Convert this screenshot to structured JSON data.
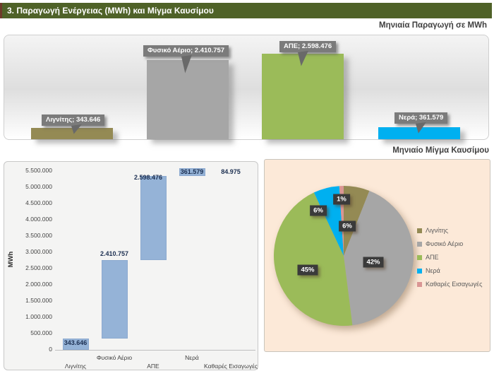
{
  "header": {
    "title": "3. Παραγωγή Ενέργειας (MWh) και Μίγμα Καυσίμου"
  },
  "theme": {
    "header_bg": "#4F6228",
    "header_accent": "#6E3B2A",
    "pie_panel_bg": "#FCE9D8",
    "waterfall_bar_color": "#95B3D7",
    "callout_bg": "#7B7B7B"
  },
  "chart_data": [
    {
      "type": "bar",
      "title": "Μηνιαία Παραγωγή σε MWh",
      "categories": [
        "Λιγνίτης",
        "Φυσικό Αέριο",
        "ΑΠΕ",
        "Νερά"
      ],
      "values": [
        343646,
        2410757,
        2598476,
        361579
      ],
      "callouts": [
        "Λιγνίτης; 343.646",
        "Φυσικό Αέριο; 2.410.757",
        "ΑΠΕ; 2.598.476",
        "Νερά; 361.579"
      ],
      "colors": [
        "#948A54",
        "#A6A6A6",
        "#9BBB59",
        "#00B0F0"
      ],
      "xlabel": "",
      "ylabel": "",
      "grid": false,
      "legend": false
    },
    {
      "type": "bar",
      "subtype": "waterfall",
      "title": "",
      "xlabel": "",
      "ylabel": "MWh",
      "categories": [
        "Λιγνίτης",
        "Φυσικό Αέριο",
        "ΑΠΕ",
        "Νερά",
        "Καθαρές Εισαγωγές"
      ],
      "values": [
        343646,
        2410757,
        2598476,
        361579,
        84975
      ],
      "cumulative_starts": [
        0,
        343646,
        2754403,
        5352879,
        5714458
      ],
      "data_labels": [
        "343.646",
        "2.410.757",
        "2.598.476",
        "361.579",
        "84.975"
      ],
      "yticks": [
        "0",
        "500.000",
        "1.000.000",
        "1.500.000",
        "2.000.000",
        "2.500.000",
        "3.000.000",
        "3.500.000",
        "4.000.000",
        "4.500.000",
        "5.000.000",
        "5.500.000"
      ],
      "ylim": [
        0,
        5500000
      ],
      "bar_color": "#95B3D7",
      "grid": false,
      "legend": false
    },
    {
      "type": "pie",
      "title": "Μηνιαίο Μίγμα Καυσίμου",
      "labels": [
        "Λιγνίτης",
        "Φυσικό Αέριο",
        "ΑΠΕ",
        "Νερά",
        "Καθαρές Εισαγωγές"
      ],
      "values_pct": [
        6,
        42,
        45,
        6,
        1
      ],
      "pct_labels": [
        "6%",
        "42%",
        "45%",
        "6%",
        "1%"
      ],
      "colors": [
        "#948A54",
        "#A6A6A6",
        "#9BBB59",
        "#00B0F0",
        "#D99694"
      ],
      "legend_position": "right",
      "background": "#FCE9D8"
    }
  ]
}
